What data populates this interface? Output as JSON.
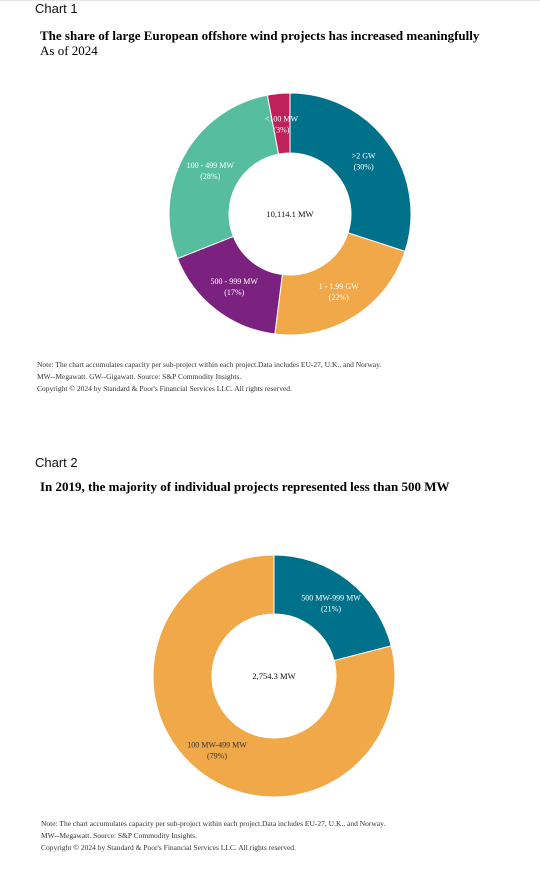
{
  "charts": [
    {
      "label": "Chart 1",
      "title": "The share of large European offshore wind projects has increased meaningfully",
      "subtitle": "As of 2024",
      "notes": [
        "Note: The chart accumulates capacity per sub-project within each project.Data includes EU-27, U.K., and Norway.",
        "MW--Megawatt. GW--Gigawatt. Source: S&P Commodity Insights.",
        "Copyright © 2024 by Standard & Poor's Financial Services LLC. All rights reserved."
      ]
    },
    {
      "label": "Chart 2",
      "title": "In 2019, the majority of individual projects represented less than 500 MW",
      "subtitle": "",
      "notes": [
        "Note: The chart accumulates capacity per sub-project within each project.Data includes EU-27, U.K., and Norway.",
        "MW--Megawatt. Source: S&P Commodity Insights.",
        "Copyright © 2024 by Standard & Poor's Financial Services LLC. All rights reserved."
      ]
    }
  ],
  "chart_data": [
    {
      "type": "pie",
      "donut": true,
      "center_label": "10,114.1 MW",
      "title": "The share of large European offshore wind projects has increased meaningfully",
      "subtitle": "As of 2024",
      "legend": "none",
      "slices": [
        {
          "label": ">2 GW",
          "pct_label": "(30%)",
          "value": 30,
          "color": "#00718a",
          "text_color": "#ffffff"
        },
        {
          "label": "1 - 1.99 GW",
          "pct_label": "(22%)",
          "value": 22,
          "color": "#f0a848",
          "text_color": "#ffffff"
        },
        {
          "label": "500 - 999 MW",
          "pct_label": "(17%)",
          "value": 17,
          "color": "#7b217f",
          "text_color": "#ffffff"
        },
        {
          "label": "100 - 499 MW",
          "pct_label": "(28%)",
          "value": 28,
          "color": "#56be9e",
          "text_color": "#ffffff"
        },
        {
          "label": "<100 MW",
          "pct_label": "(3%)",
          "value": 3,
          "color": "#c0215a",
          "text_color": "#ffffff"
        }
      ]
    },
    {
      "type": "pie",
      "donut": true,
      "center_label": "2,754.3 MW",
      "title": "In 2019, the majority of individual projects represented less than 500 MW",
      "legend": "none",
      "slices": [
        {
          "label": "500 MW-999 MW",
          "pct_label": "(21%)",
          "value": 21,
          "color": "#00718a",
          "text_color": "#ffffff"
        },
        {
          "label": "100 MW-499 MW",
          "pct_label": "(79%)",
          "value": 79,
          "color": "#f0a848",
          "text_color": "#333333"
        }
      ]
    }
  ]
}
